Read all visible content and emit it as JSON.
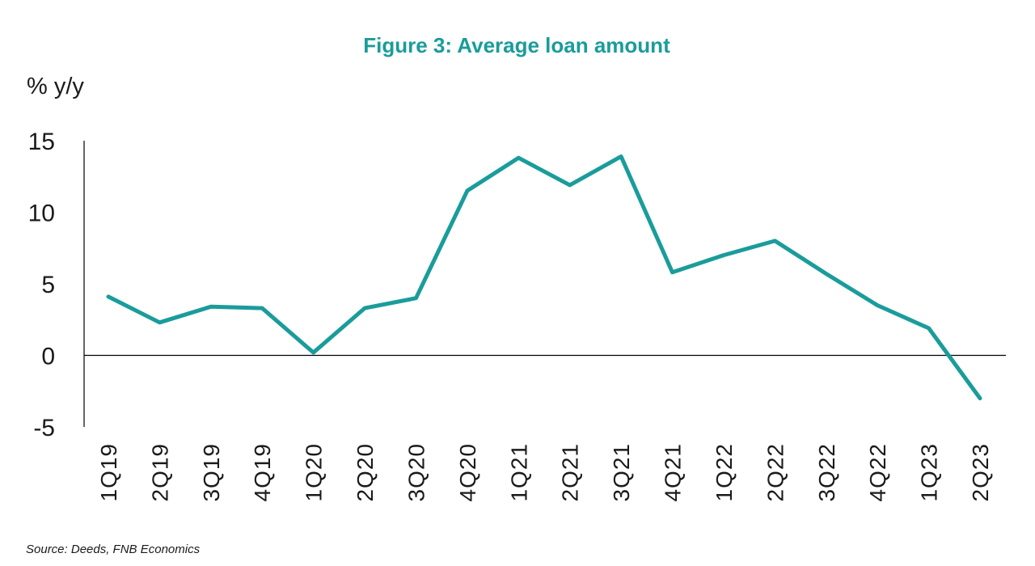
{
  "chart_data": {
    "type": "line",
    "title": "Figure 3: Average loan amount",
    "ylabel": "% y/y",
    "xlabel": "",
    "categories": [
      "1Q19",
      "2Q19",
      "3Q19",
      "4Q19",
      "1Q20",
      "2Q20",
      "3Q20",
      "4Q20",
      "1Q21",
      "2Q21",
      "3Q21",
      "4Q21",
      "1Q22",
      "2Q22",
      "3Q22",
      "4Q22",
      "1Q23",
      "2Q23"
    ],
    "series": [
      {
        "values": [
          4.1,
          2.3,
          3.4,
          3.3,
          0.2,
          3.3,
          4.0,
          11.5,
          13.8,
          11.9,
          13.9,
          5.8,
          7.0,
          8.0,
          5.7,
          3.5,
          1.9,
          -3.0
        ]
      }
    ],
    "yticks": [
      "15",
      "10",
      "5",
      "0",
      "-5"
    ],
    "ylim": [
      -5,
      15
    ],
    "grid": false,
    "legend": "none",
    "source": "Source: Deeds, FNB Economics",
    "colors": {
      "line": "#1a9c9b",
      "title": "#1a9c9b",
      "axis": "#000000"
    }
  }
}
